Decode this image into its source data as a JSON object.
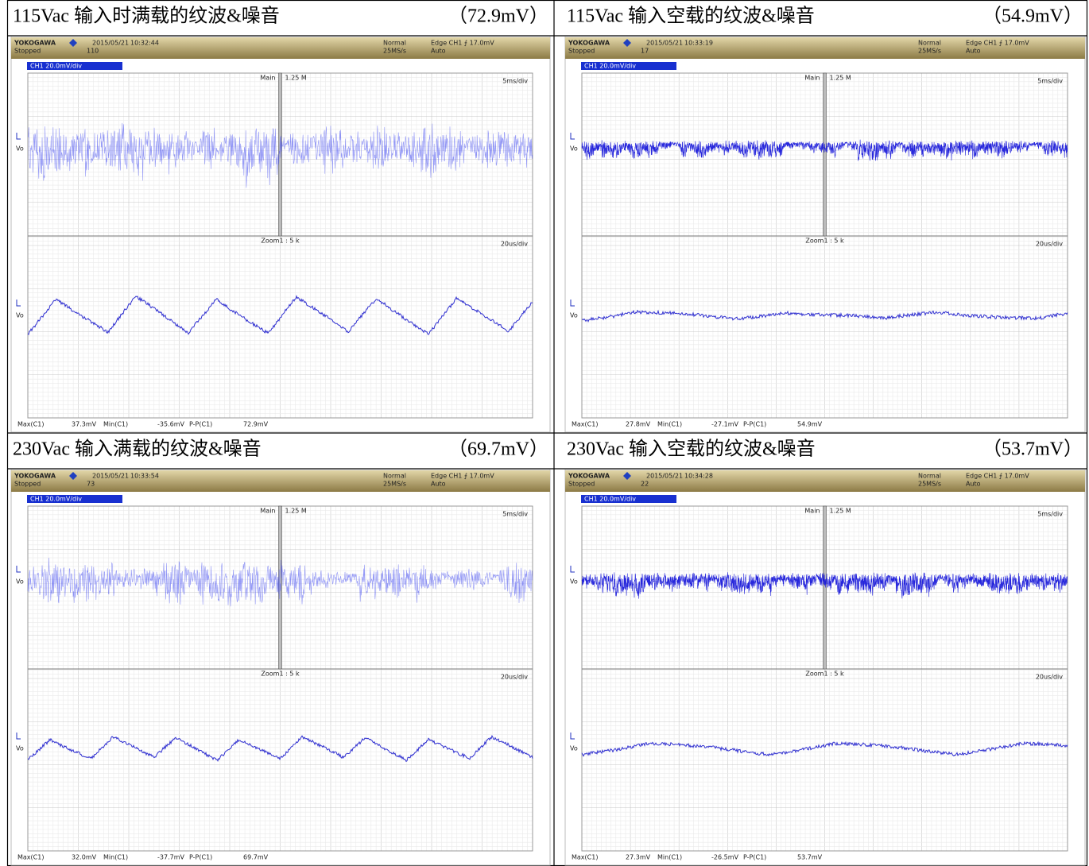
{
  "panels": [
    {
      "caption": "115Vac 输入时满载的纹波&噪音",
      "reading": "（72.9mV）",
      "scope": {
        "brand": "YOKOGAWA",
        "date": "2015/05/21",
        "time": "10:32:44",
        "status": "Stopped",
        "count": "110",
        "mode": "Normal",
        "rate": "25MS/s",
        "trigger": "Edge CH1 ⨍ 17.0mV",
        "trigger_mode": "Auto",
        "channel": "CH1 20.0mV/div",
        "trace": "Vo",
        "main": "Main",
        "main_value": "1.25 M",
        "main_div": "5ms/div",
        "zoom": "Zoom1 : 5 k",
        "zoom_div": "20us/div",
        "measurements": [
          [
            "Max(C1)",
            "37.3mV"
          ],
          [
            "Min(C1)",
            "-35.6mV"
          ],
          [
            "P-P(C1)",
            "72.9mV"
          ]
        ]
      }
    },
    {
      "caption": "115Vac 输入空载的纹波&噪音",
      "reading": "（54.9mV）",
      "scope": {
        "brand": "YOKOGAWA",
        "date": "2015/05/21",
        "time": "10:33:19",
        "status": "Stopped",
        "count": "17",
        "mode": "Normal",
        "rate": "25MS/s",
        "trigger": "Edge CH1 ⨍ 17.0mV",
        "trigger_mode": "Auto",
        "channel": "CH1 20.0mV/div",
        "trace": "Vo",
        "main": "Main",
        "main_value": "1.25 M",
        "main_div": "5ms/div",
        "zoom": "Zoom1 : 5 k",
        "zoom_div": "20us/div",
        "measurements": [
          [
            "Max(C1)",
            "27.8mV"
          ],
          [
            "Min(C1)",
            "-27.1mV"
          ],
          [
            "P-P(C1)",
            "54.9mV"
          ]
        ]
      }
    },
    {
      "caption": "230Vac 输入满载的纹波&噪音",
      "reading": "（69.7mV）",
      "scope": {
        "brand": "YOKOGAWA",
        "date": "2015/05/21",
        "time": "10:33:54",
        "status": "Stopped",
        "count": "73",
        "mode": "Normal",
        "rate": "25MS/s",
        "trigger": "Edge CH1 ⨍ 17.0mV",
        "trigger_mode": "Auto",
        "channel": "CH1 20.0mV/div",
        "trace": "Vo",
        "main": "Main",
        "main_value": "1.25 M",
        "main_div": "5ms/div",
        "zoom": "Zoom1 : 5 k",
        "zoom_div": "20us/div",
        "measurements": [
          [
            "Max(C1)",
            "32.0mV"
          ],
          [
            "Min(C1)",
            "-37.7mV"
          ],
          [
            "P-P(C1)",
            "69.7mV"
          ]
        ]
      }
    },
    {
      "caption": "230Vac 输入空载的纹波&噪音",
      "reading": "（53.7mV）",
      "scope": {
        "brand": "YOKOGAWA",
        "date": "2015/05/21",
        "time": "10:34:28",
        "status": "Stopped",
        "count": "22",
        "mode": "Normal",
        "rate": "25MS/s",
        "trigger": "Edge CH1 ⨍ 17.0mV",
        "trigger_mode": "Auto",
        "channel": "CH1 20.0mV/div",
        "trace": "Vo",
        "main": "Main",
        "main_value": "1.25 M",
        "main_div": "5ms/div",
        "zoom": "Zoom1 : 5 k",
        "zoom_div": "20us/div",
        "measurements": [
          [
            "Max(C1)",
            "27.3mV"
          ],
          [
            "Min(C1)",
            "-26.5mV"
          ],
          [
            "P-P(C1)",
            "53.7mV"
          ]
        ]
      }
    }
  ]
}
